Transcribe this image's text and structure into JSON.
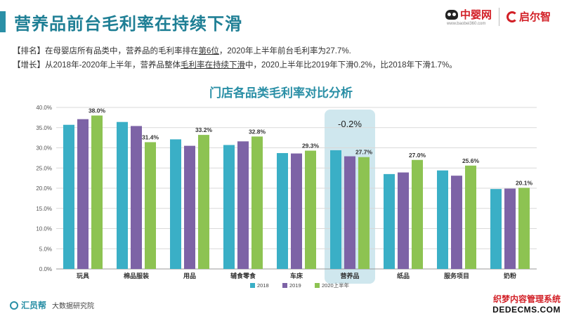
{
  "header": {
    "title": "营养品前台毛利率在持续下滑",
    "logo_zy": "中婴网",
    "logo_zy_url": "www.baobei360.com",
    "logo_qe": "启尔智"
  },
  "description": {
    "line1_prefix": "【排名】在母婴店所有品类中，营养品的毛利率排在",
    "line1_underline": "第6位",
    "line1_suffix": "，2020年上半年前台毛利率为27.7%.",
    "line2_prefix": "【增长】从2018年-2020年上半年，营养品整体",
    "line2_underline": "毛利率在持续下滑",
    "line2_suffix": "中，2020上半年比2019年下滑0.2%，比2018年下滑1.7%。"
  },
  "chart_data": {
    "type": "bar",
    "title": "门店各品类毛利率对比分析",
    "categories": [
      "玩具",
      "棉品服装",
      "用品",
      "辅食零食",
      "车床",
      "营养品",
      "纸品",
      "服务项目",
      "奶粉"
    ],
    "series": [
      {
        "name": "2018",
        "values": [
          35.7,
          36.4,
          32.1,
          30.7,
          28.7,
          29.4,
          23.5,
          24.4,
          19.8
        ],
        "color": "#3aafc6"
      },
      {
        "name": "2019",
        "values": [
          37.1,
          35.4,
          30.5,
          31.6,
          28.6,
          27.9,
          23.9,
          23.1,
          19.9
        ],
        "color": "#7d63a6"
      },
      {
        "name": "2020上半年",
        "values": [
          38.0,
          31.4,
          33.2,
          32.8,
          29.3,
          27.7,
          27.0,
          25.6,
          20.1
        ],
        "color": "#8dc352"
      }
    ],
    "data_labels": [
      "38.0%",
      "31.4%",
      "33.2%",
      "32.8%",
      "29.3%",
      "27.7%",
      "27.0%",
      "25.6%",
      "20.1%"
    ],
    "highlight_category": "营养品",
    "highlight_annotation": "-0.2%",
    "ylim": [
      0,
      40
    ],
    "yticks": [
      "0.0%",
      "5.0%",
      "10.0%",
      "15.0%",
      "20.0%",
      "25.0%",
      "30.0%",
      "35.0%",
      "40.0%"
    ],
    "grid": true,
    "legend_position": "bottom"
  },
  "footer": {
    "brand": "汇员帮",
    "subtitle": "大数据研究院"
  },
  "watermark": {
    "line1": "织梦内容管理系统",
    "line2": "DEDECMS.COM"
  }
}
